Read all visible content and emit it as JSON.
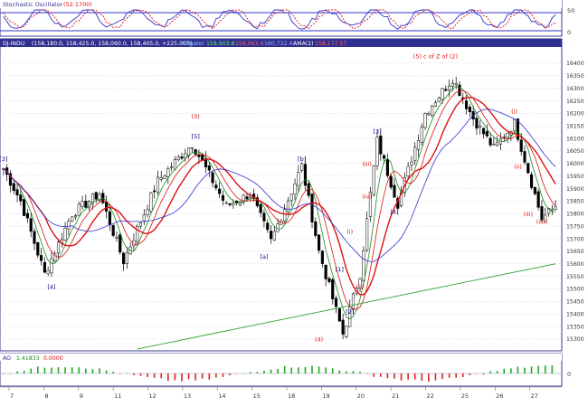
{
  "colors": {
    "frame": "#3a3a8c",
    "panel_header": "#2f2f8f",
    "grid": "#b8bcd8",
    "red": "#dd1111",
    "green": "#1a8a1a",
    "blue": "#3333cc",
    "navy": "#000080",
    "trend": "#44aa44",
    "osc_bar_pos": "#22aa22",
    "osc_bar_neg": "#dd2222"
  },
  "stochastic_panel": {
    "title": "Stochastic Oscillator",
    "value": "(52.1700)",
    "levels": [
      "50",
      "0"
    ]
  },
  "price_panel": {
    "symbol": "DJ-INDU",
    "ohlc": "(158,180.0, 158,425.0, 158,060.0, 158,405.0, +225.000)",
    "ma_label": "Alligator",
    "ma_values": [
      "158,903.8",
      "159,063.4",
      "160,722.4",
      "AMA(2)",
      "158,177.57"
    ]
  },
  "oscillator_panel": {
    "title": "AO",
    "values": [
      "1.41833",
      "0.0000"
    ],
    "scale": "0"
  },
  "chart_data": {
    "type": "candlestick",
    "y_ticks": [
      15300,
      15350,
      15400,
      15450,
      15500,
      15550,
      15600,
      15650,
      15700,
      15750,
      15800,
      15850,
      15900,
      15950,
      16000,
      16050,
      16100,
      16150,
      16200,
      16250,
      16300,
      16350,
      16400
    ],
    "ylim": [
      15260,
      16450
    ],
    "date_labels": [
      "7",
      "8",
      "9",
      "11",
      "12",
      "13",
      "14",
      "15",
      "18",
      "19",
      "20",
      "21",
      "22",
      "25",
      "26",
      "27"
    ],
    "annotations": [
      {
        "text": "(5) c of Z of (2)",
        "color": "red"
      },
      {
        "text": "(3)",
        "color": "red"
      },
      {
        "text": "[5]",
        "color": "navy"
      },
      {
        "text": "[b]",
        "color": "navy"
      },
      {
        "text": "[3]",
        "color": "navy"
      },
      {
        "text": "(iii)",
        "color": "red"
      },
      {
        "text": "(iv)",
        "color": "red"
      },
      {
        "text": "[4]",
        "color": "navy"
      },
      {
        "text": "(i)",
        "color": "red"
      },
      {
        "text": "(ii)",
        "color": "red"
      },
      {
        "text": "[1]",
        "color": "navy"
      },
      {
        "text": "[2]",
        "color": "navy"
      },
      {
        "text": "(4)",
        "color": "red"
      },
      {
        "text": "[a]",
        "color": "navy"
      },
      {
        "text": "[4]",
        "color": "navy"
      },
      {
        "text": "[3]",
        "color": "navy"
      },
      {
        "text": "(i)",
        "color": "red"
      },
      {
        "text": "(ii)",
        "color": "red"
      },
      {
        "text": "(iii)",
        "color": "red"
      },
      {
        "text": "(iiii)",
        "color": "red"
      }
    ],
    "path_points": [
      {
        "bar": 0,
        "price": 15980
      },
      {
        "bar": 5,
        "price": 15850
      },
      {
        "bar": 12,
        "price": 15560
      },
      {
        "bar": 20,
        "price": 15800
      },
      {
        "bar": 28,
        "price": 15880
      },
      {
        "bar": 35,
        "price": 15610
      },
      {
        "bar": 45,
        "price": 15930
      },
      {
        "bar": 55,
        "price": 16080
      },
      {
        "bar": 65,
        "price": 15830
      },
      {
        "bar": 72,
        "price": 15880
      },
      {
        "bar": 78,
        "price": 15690
      },
      {
        "bar": 87,
        "price": 15990
      },
      {
        "bar": 92,
        "price": 15650
      },
      {
        "bar": 99,
        "price": 15320
      },
      {
        "bar": 104,
        "price": 15560
      },
      {
        "bar": 109,
        "price": 16090
      },
      {
        "bar": 115,
        "price": 15840
      },
      {
        "bar": 123,
        "price": 16200
      },
      {
        "bar": 131,
        "price": 16340
      },
      {
        "bar": 137,
        "price": 16180
      },
      {
        "bar": 143,
        "price": 16060
      },
      {
        "bar": 149,
        "price": 16160
      },
      {
        "bar": 157,
        "price": 15780
      },
      {
        "bar": 161,
        "price": 15830
      }
    ],
    "n_bars": 162,
    "trend_line": [
      {
        "bar": 39,
        "price": 15260
      },
      {
        "bar": 161,
        "price": 15600
      }
    ],
    "ma_periods": [
      {
        "color": "green",
        "period": 5
      },
      {
        "color": "red",
        "period": 8
      },
      {
        "color": "red",
        "period": 13
      },
      {
        "color": "blue",
        "period": 21
      }
    ]
  }
}
